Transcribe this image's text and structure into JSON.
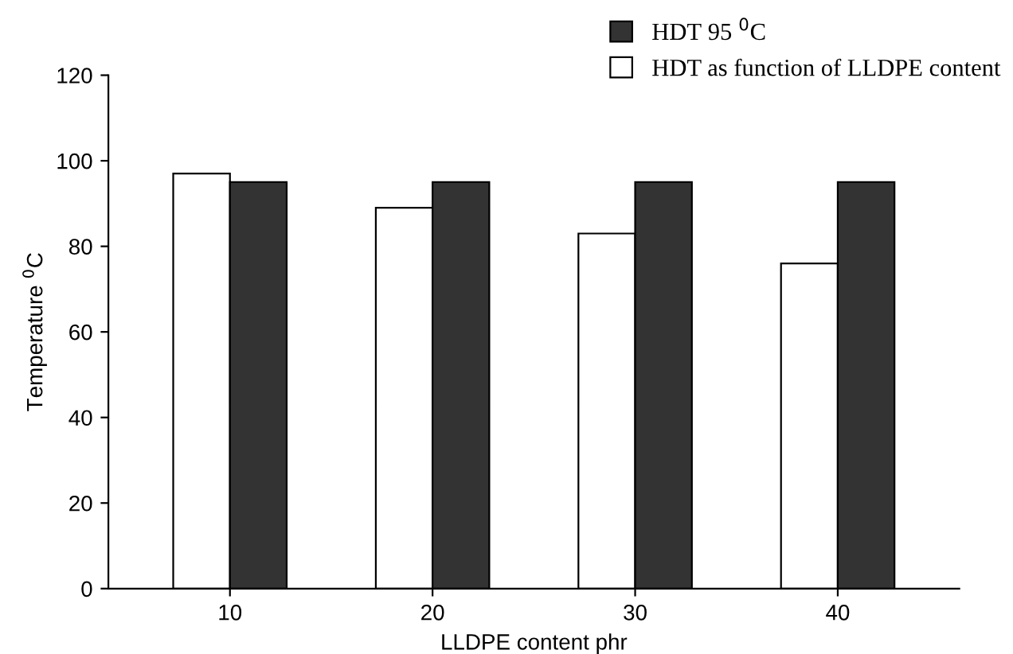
{
  "chart_data": {
    "type": "bar",
    "xlabel": "LLDPE content phr",
    "ylabel": "Temperature $^{0}$C",
    "categories": [
      "10",
      "20",
      "30",
      "40"
    ],
    "series": [
      {
        "name": "HDT as function of LLDPE content",
        "color": "#ffffff",
        "values": [
          97,
          89,
          83,
          76
        ]
      },
      {
        "name": "HDT 95 $^{0}$C",
        "color": "#333333",
        "values": [
          95,
          95,
          95,
          95
        ]
      }
    ],
    "ylim": [
      0,
      120
    ],
    "yticks": [
      0,
      20,
      40,
      60,
      80,
      100,
      120
    ],
    "grid": false,
    "legend": "top right"
  }
}
